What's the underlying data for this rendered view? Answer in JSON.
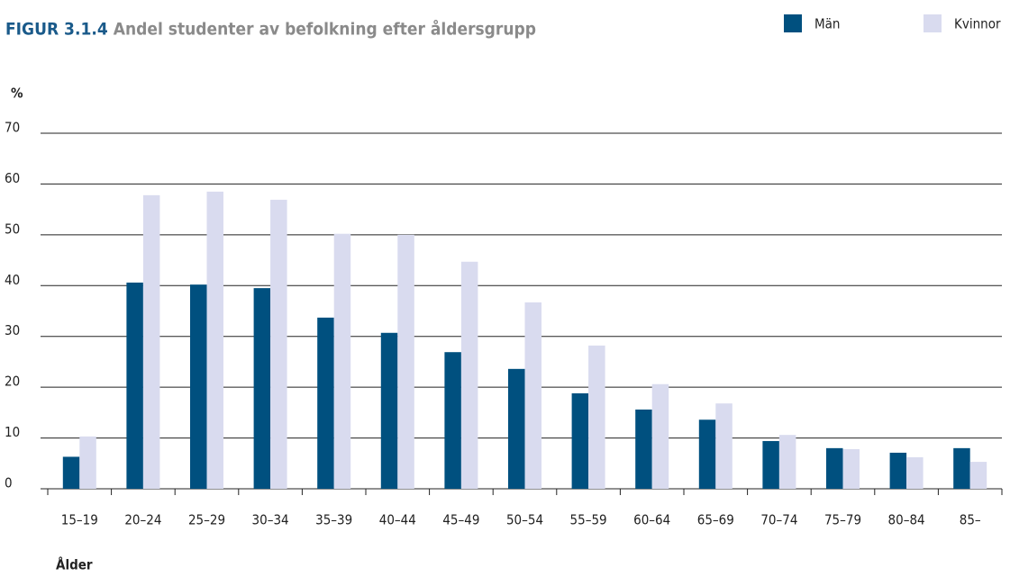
{
  "chart_data": {
    "type": "bar",
    "title_label": "FIGUR 3.1.4",
    "title": "Andel studenter av befolkning efter åldersgrupp",
    "y_label": "%",
    "x_label": "Ålder",
    "categories": [
      "15–19",
      "20–24",
      "25–29",
      "30–34",
      "35–39",
      "40–44",
      "45–49",
      "50–54",
      "55–59",
      "60–64",
      "65–69",
      "70–74",
      "75–79",
      "80–84",
      "85–"
    ],
    "series": [
      {
        "name": "Män",
        "color": "#00507f",
        "values": [
          6.3,
          40.6,
          40.2,
          39.5,
          33.7,
          30.7,
          26.9,
          23.6,
          18.8,
          15.6,
          13.6,
          9.4,
          8.0,
          7.1,
          8.0
        ]
      },
      {
        "name": "Kvinnor",
        "color": "#d9dbef",
        "values": [
          10.3,
          57.8,
          58.5,
          56.9,
          50.2,
          50.0,
          44.7,
          36.7,
          28.2,
          20.6,
          16.8,
          10.6,
          7.8,
          6.2,
          5.3
        ]
      }
    ],
    "ylim": [
      0,
      70
    ],
    "yticks": [
      0,
      10,
      20,
      30,
      40,
      50,
      60,
      70
    ],
    "grid": true,
    "legend": "top-right"
  }
}
